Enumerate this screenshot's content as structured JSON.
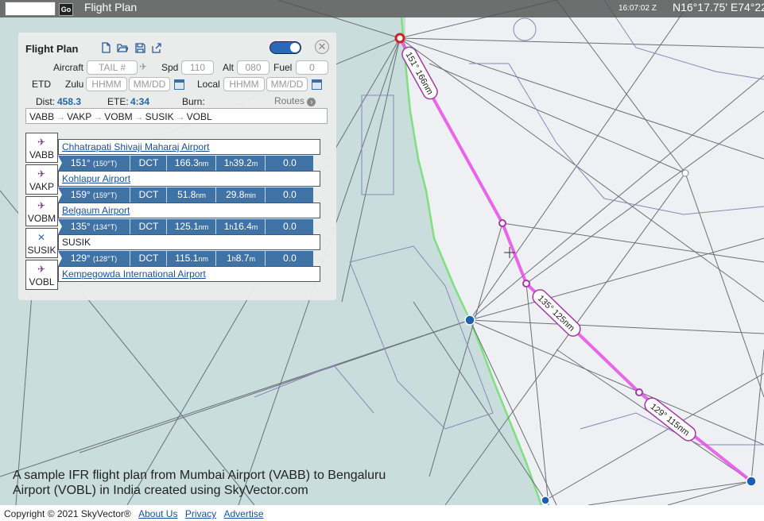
{
  "topbar": {
    "go_label": "Go",
    "title": "Flight Plan",
    "time": "16:07:02 Z",
    "coordinates": "N16°17.75' E74°22"
  },
  "flight_plan": {
    "title": "Flight Plan",
    "aircraft_label": "Aircraft",
    "aircraft_placeholder": "TAIL #",
    "spd_label": "Spd",
    "spd_value": "110",
    "alt_label": "Alt",
    "alt_value": "080",
    "fuel_label": "Fuel",
    "fuel_value": "0",
    "etd_label": "ETD",
    "zulu_label": "Zulu",
    "time_placeholder": "HHMM",
    "date_placeholder": "MM/DD",
    "local_label": "Local",
    "dist_label": "Dist:",
    "dist_value": "458.3",
    "ete_label": "ETE:",
    "ete_value": "4:34",
    "burn_label": "Burn:",
    "routes_label": "Routes",
    "route": [
      "VABB",
      "VAKP",
      "VOBM",
      "SUSIK",
      "VOBL"
    ],
    "waypoints": [
      {
        "code": "VABB",
        "name": "Chhatrapati Shivaji Maharaj Airport",
        "icon": "airport-icon",
        "link": true
      },
      {
        "code": "VAKP",
        "name": "Kohlapur Airport",
        "icon": "airport-icon",
        "link": true
      },
      {
        "code": "VOBM",
        "name": "Belgaum Airport",
        "icon": "airport-icon",
        "link": true
      },
      {
        "code": "SUSIK",
        "name": "SUSIK",
        "icon": "fix-icon",
        "link": false
      },
      {
        "code": "VOBL",
        "name": "Kempegowda International Airport",
        "icon": "airport-icon",
        "link": true
      }
    ],
    "legs": [
      {
        "course": "151°",
        "true_course": "(150°T)",
        "via": "DCT",
        "dist_num": "166.3",
        "dist_unit": "nm",
        "ete_h": "1",
        "ete_m": "39.2",
        "fuel": "0.0"
      },
      {
        "course": "159°",
        "true_course": "(159°T)",
        "via": "DCT",
        "dist_num": "51.8",
        "dist_unit": "nm",
        "ete_h": "",
        "ete_m": "29.8",
        "fuel": "0.0"
      },
      {
        "course": "135°",
        "true_course": "(134°T)",
        "via": "DCT",
        "dist_num": "125.1",
        "dist_unit": "nm",
        "ete_h": "1",
        "ete_m": "16.4",
        "fuel": "0.0"
      },
      {
        "course": "129°",
        "true_course": "(128°T)",
        "via": "DCT",
        "dist_num": "115.1",
        "dist_unit": "nm",
        "ete_h": "1",
        "ete_m": "8.7",
        "fuel": "0.0"
      }
    ]
  },
  "map": {
    "route_labels": [
      "151° 166nm",
      "135° 125nm",
      "129° 115nm"
    ],
    "route_color": "#e64ee6",
    "sea_color": "#c9dddd",
    "coast_color": "#7ee07e"
  },
  "caption": {
    "line1": "A sample IFR flight plan from Mumbai Airport (VABB) to Bengaluru",
    "line2": "Airport (VOBL) in India created using SkyVector.com"
  },
  "footer": {
    "copyright": "Copyright © 2021 SkyVector®",
    "about": "About Us",
    "privacy": "Privacy",
    "advertise": "Advertise"
  }
}
